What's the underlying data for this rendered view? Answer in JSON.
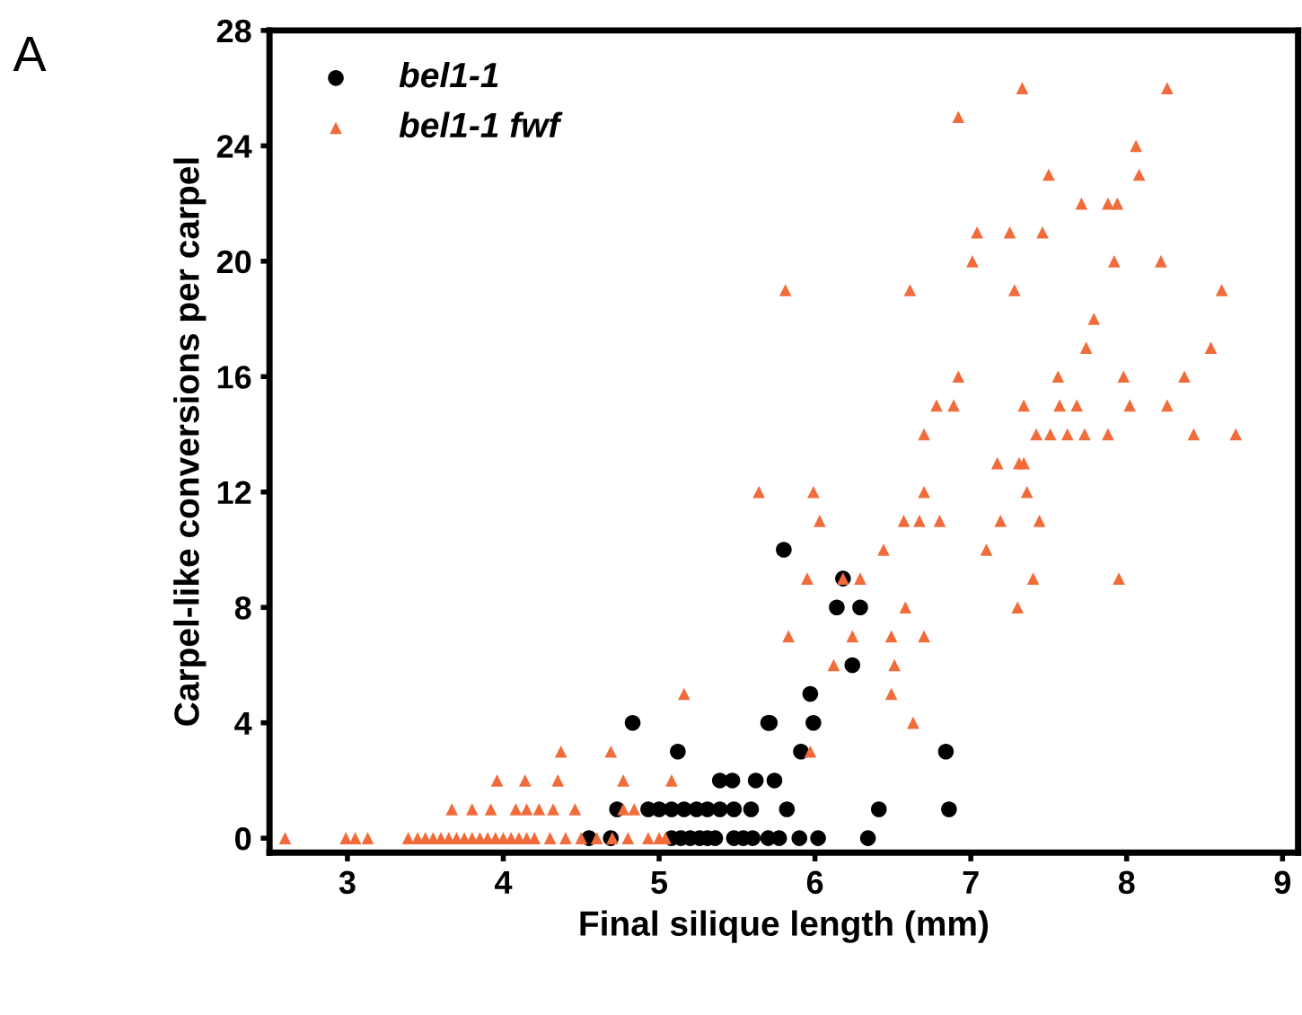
{
  "chart_data": {
    "type": "scatter",
    "xlabel": "Final silique length (mm)",
    "ylabel": "Carpel-like conversions per carpel",
    "annotations": [
      "A"
    ],
    "xlim": [
      2.5,
      9.1
    ],
    "ylim": [
      -0.5,
      28
    ],
    "xticks": [
      3,
      4,
      5,
      6,
      7,
      8,
      9
    ],
    "yticks": [
      0,
      4,
      8,
      12,
      16,
      20,
      24,
      28
    ],
    "grid": false,
    "legend": "top left",
    "series": [
      {
        "name": "bel1-1",
        "color": "#000000",
        "marker": "circle",
        "x": [
          4.55,
          4.69,
          5.08,
          5.14,
          5.2,
          5.26,
          5.31,
          5.36,
          5.48,
          5.54,
          5.6,
          5.7,
          5.77,
          5.9,
          6.02,
          6.34,
          4.73,
          4.93,
          5.0,
          5.08,
          5.16,
          5.24,
          5.31,
          5.39,
          5.48,
          5.59,
          5.82,
          6.41,
          6.86,
          5.39,
          5.47,
          5.62,
          5.74,
          5.12,
          4.83,
          5.7,
          5.91,
          6.84,
          5.71,
          5.99,
          5.97,
          6.24,
          6.14,
          6.29,
          6.18,
          5.8
        ],
        "values": [
          0,
          0,
          0,
          0,
          0,
          0,
          0,
          0,
          0,
          0,
          0,
          0,
          0,
          0,
          0,
          0,
          1,
          1,
          1,
          1,
          1,
          1,
          1,
          1,
          1,
          1,
          1,
          1,
          1,
          2,
          2,
          2,
          2,
          3,
          4,
          4,
          3,
          3,
          4,
          4,
          5,
          6,
          8,
          8,
          9,
          10
        ]
      },
      {
        "name": "bel1-1 fwf",
        "color": "#f26b3a",
        "marker": "triangle",
        "x": [
          2.6,
          2.99,
          3.05,
          3.13,
          3.39,
          3.45,
          3.5,
          3.55,
          3.6,
          3.65,
          3.7,
          3.75,
          3.8,
          3.85,
          3.9,
          3.95,
          4.0,
          4.05,
          4.1,
          4.15,
          4.2,
          4.3,
          4.4,
          4.5,
          4.6,
          4.7,
          4.8,
          4.93,
          5.0,
          5.04,
          3.67,
          3.8,
          3.92,
          4.08,
          4.15,
          4.23,
          4.32,
          4.46,
          4.77,
          4.84,
          3.96,
          4.14,
          4.35,
          4.77,
          5.08,
          4.37,
          4.69,
          5.97,
          6.63,
          5.16,
          6.49,
          6.12,
          6.51,
          5.83,
          6.24,
          6.49,
          6.7,
          6.58,
          7.3,
          5.95,
          6.18,
          6.29,
          7.4,
          7.95,
          6.44,
          7.1,
          6.03,
          6.57,
          6.67,
          6.8,
          7.19,
          7.44,
          5.64,
          5.99,
          6.7,
          7.36,
          7.17,
          7.31,
          7.34,
          6.7,
          7.42,
          7.51,
          7.62,
          7.73,
          7.88,
          8.43,
          8.7,
          6.78,
          6.89,
          7.34,
          7.57,
          7.68,
          8.02,
          8.26,
          6.92,
          7.56,
          7.98,
          8.37,
          7.74,
          8.54,
          7.79,
          5.81,
          6.61,
          7.28,
          8.61,
          7.01,
          7.92,
          8.22,
          7.04,
          7.25,
          7.46,
          7.71,
          7.88,
          7.94,
          7.5,
          8.08,
          8.06,
          6.92,
          7.33,
          8.26
        ],
        "values": [
          0,
          0,
          0,
          0,
          0,
          0,
          0,
          0,
          0,
          0,
          0,
          0,
          0,
          0,
          0,
          0,
          0,
          0,
          0,
          0,
          0,
          0,
          0,
          0,
          0,
          0,
          0,
          0,
          0,
          0,
          1,
          1,
          1,
          1,
          1,
          1,
          1,
          1,
          1,
          1,
          2,
          2,
          2,
          2,
          2,
          3,
          3,
          3,
          4,
          5,
          5,
          6,
          6,
          7,
          7,
          7,
          7,
          8,
          8,
          9,
          9,
          9,
          9,
          9,
          10,
          10,
          11,
          11,
          11,
          11,
          11,
          11,
          12,
          12,
          12,
          12,
          13,
          13,
          13,
          14,
          14,
          14,
          14,
          14,
          14,
          14,
          14,
          15,
          15,
          15,
          15,
          15,
          15,
          15,
          16,
          16,
          16,
          16,
          17,
          17,
          18,
          19,
          19,
          19,
          19,
          20,
          20,
          20,
          21,
          21,
          21,
          22,
          22,
          22,
          23,
          23,
          24,
          25,
          26,
          26
        ]
      }
    ]
  }
}
